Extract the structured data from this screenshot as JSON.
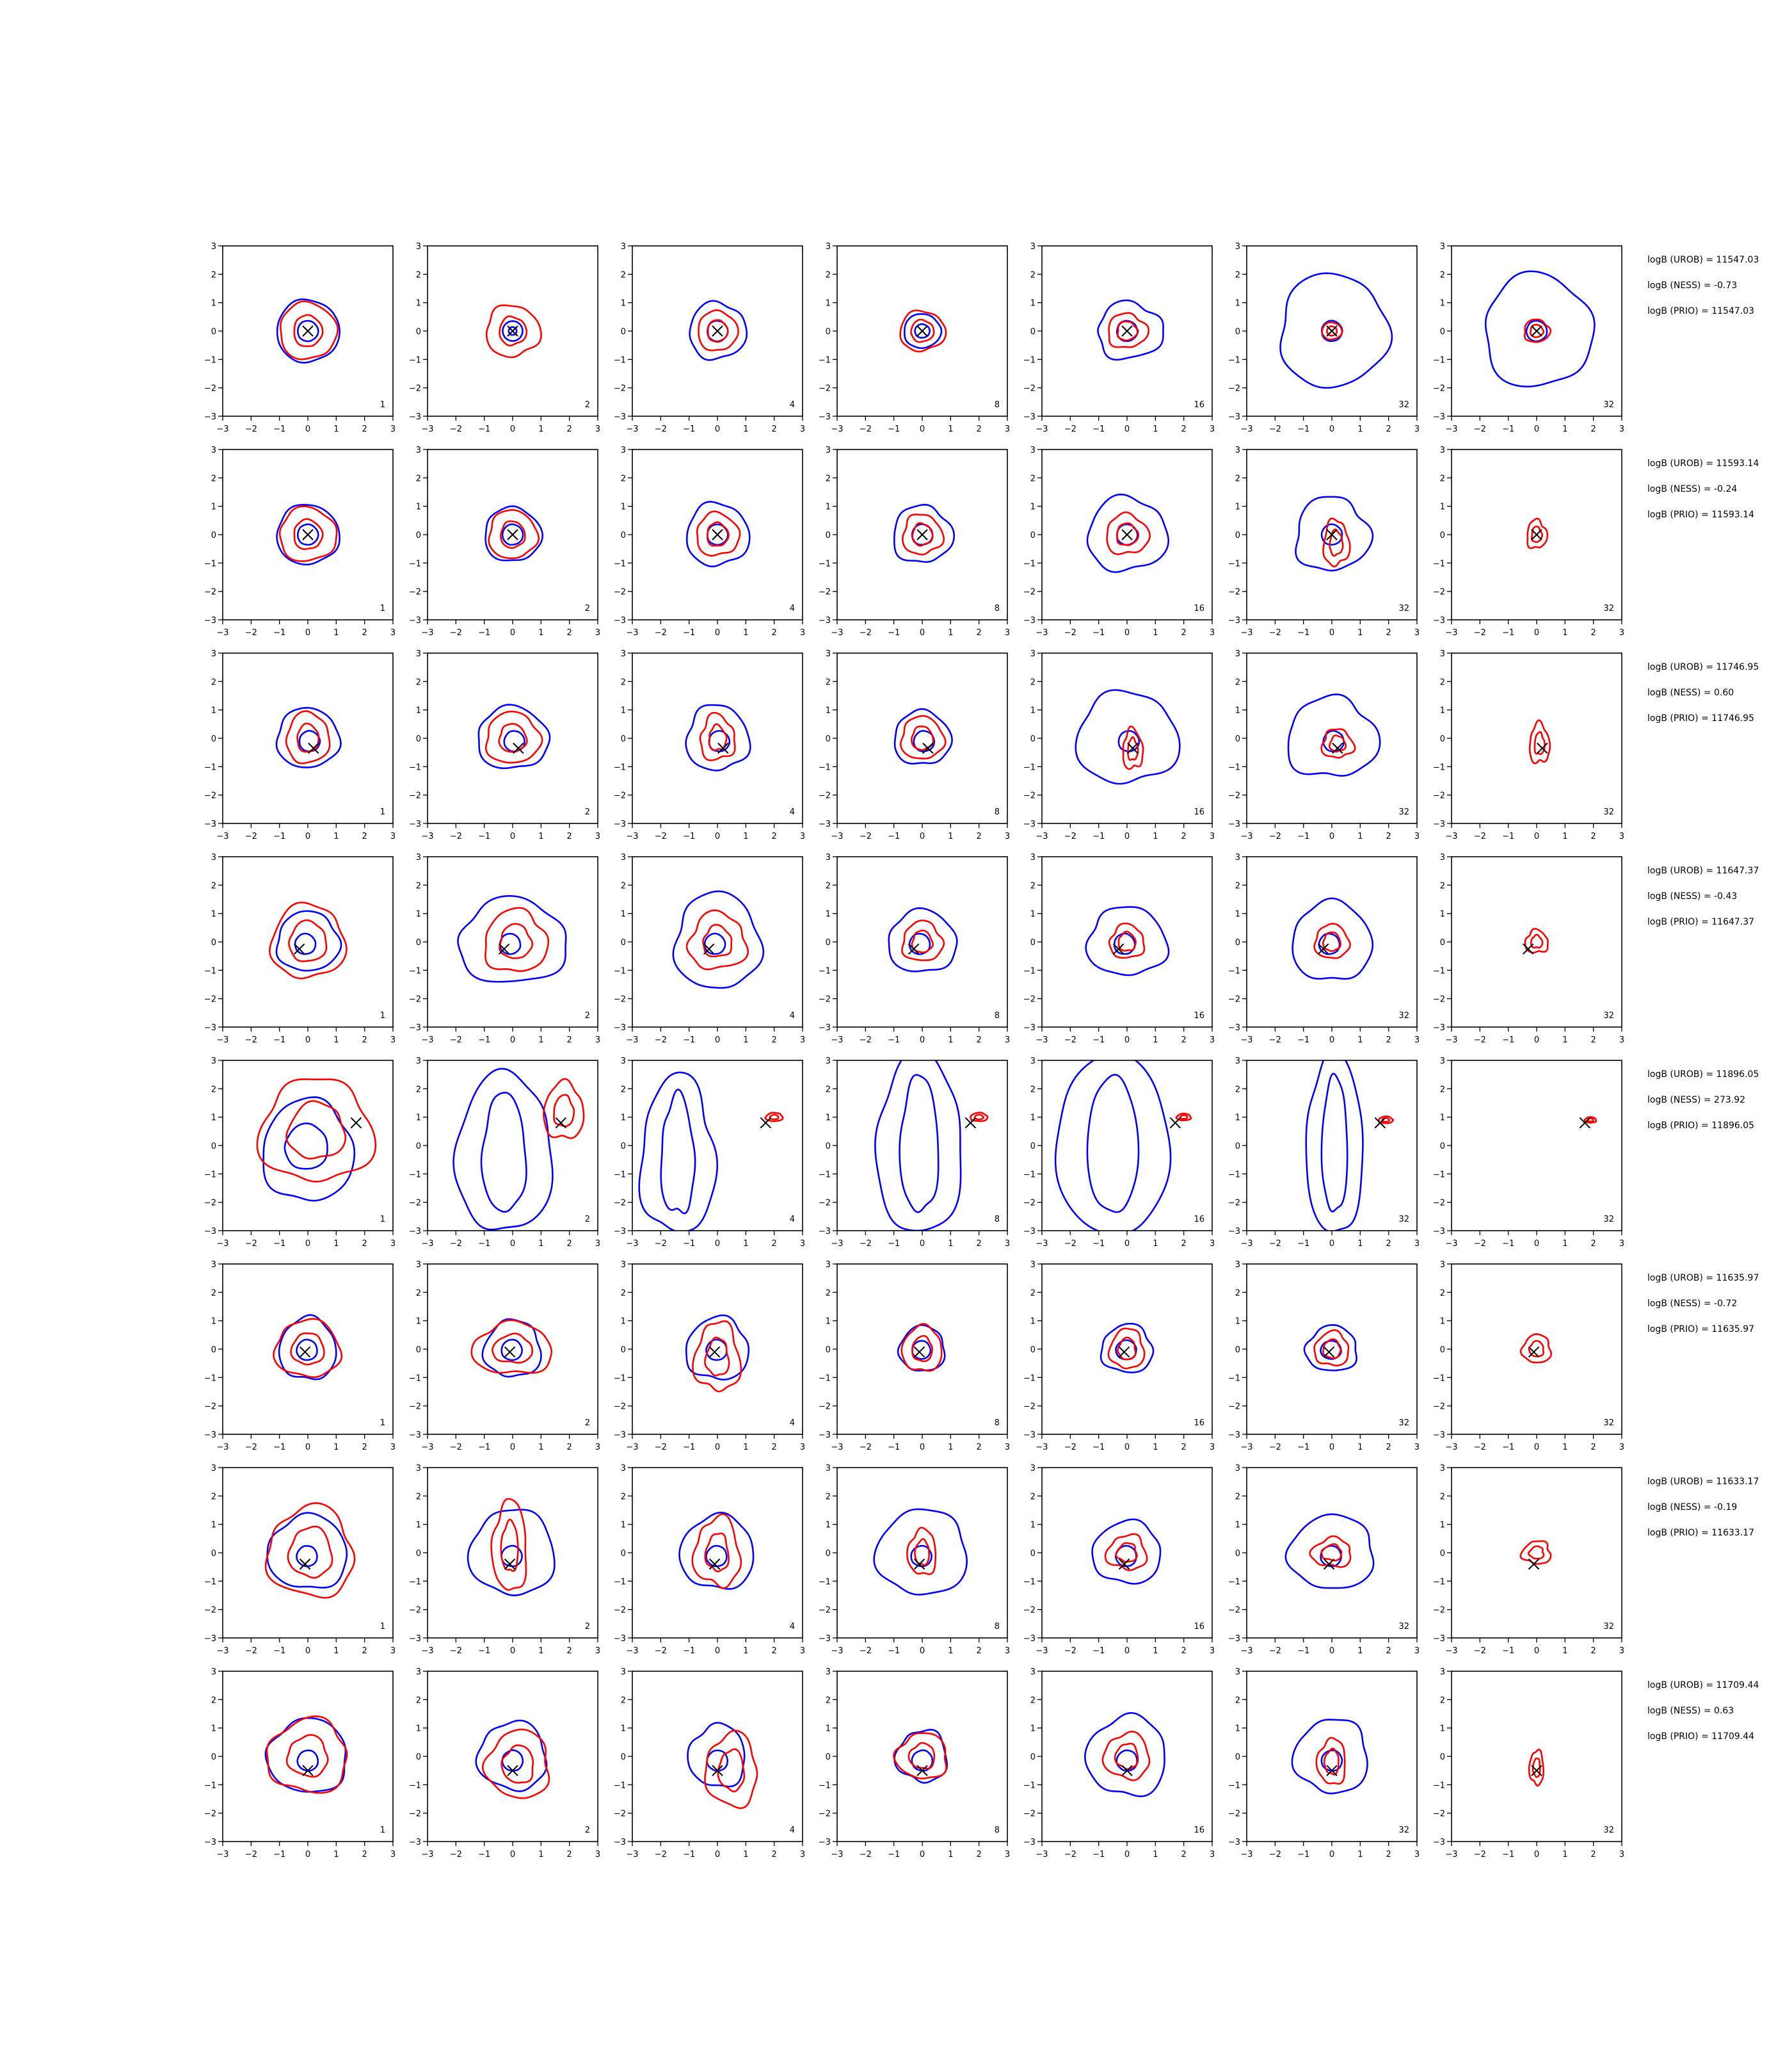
{
  "chart_data": {
    "type": "contour-grid",
    "xlim": [
      -3,
      3
    ],
    "ylim": [
      -3,
      3
    ],
    "xticks": [
      "−3",
      "−2",
      "−1",
      "0",
      "1",
      "2",
      "3"
    ],
    "yticks": [
      "3",
      "2",
      "1",
      "0",
      "−1",
      "−2",
      "−3"
    ],
    "colors": {
      "proposal": "#0000ff",
      "target": "#ff0000",
      "marker": "#000000"
    },
    "columns": [
      "1",
      "2",
      "4",
      "8",
      "16",
      "32",
      "32"
    ],
    "rows": [
      {
        "marker": [
          0.0,
          0.0
        ],
        "stats": [
          "logB (UROB) = 11547.03",
          "logB (NESS) = -0.73",
          "logB (PRIO) = 11547.03"
        ],
        "blue": [
          [
            1.1,
            1.1,
            0.05,
            0,
            0
          ],
          [
            0.35,
            0.35,
            0,
            0,
            0
          ],
          [
            1.0,
            1.0,
            0.1,
            0,
            0
          ],
          [
            0.65,
            0.6,
            0.05,
            0,
            0
          ],
          [
            1.15,
            1.0,
            0.15,
            0.1,
            0
          ],
          [
            1.9,
            2.0,
            0.1,
            0.05,
            0
          ],
          [
            1.9,
            2.0,
            0.1,
            0.05,
            0
          ]
        ],
        "red": [
          [
            1.0,
            1.0,
            0.08,
            0,
            0
          ],
          [
            0.95,
            0.9,
            0.12,
            0,
            0
          ],
          [
            0.7,
            0.7,
            0.08,
            0,
            0
          ],
          [
            0.8,
            0.7,
            0.1,
            0,
            0
          ],
          [
            0.7,
            0.6,
            0.15,
            0,
            0
          ],
          [
            0.35,
            0.3,
            0.05,
            0,
            0
          ],
          [
            0.45,
            0.4,
            0.12,
            0,
            0
          ]
        ]
      },
      {
        "marker": [
          0.0,
          0.0
        ],
        "stats": [
          "logB (UROB) = 11593.14",
          "logB (NESS) = -0.24",
          "logB (PRIO) = 11593.14"
        ],
        "blue": [
          [
            1.1,
            1.05,
            0.06,
            0,
            0
          ],
          [
            1.0,
            0.95,
            0.08,
            0,
            0
          ],
          [
            1.1,
            1.1,
            0.1,
            0,
            0
          ],
          [
            1.05,
            1.0,
            0.12,
            0,
            0
          ],
          [
            1.4,
            1.3,
            0.12,
            0,
            0
          ],
          [
            1.3,
            1.3,
            0.15,
            0,
            0
          ],
          [
            0,
            0,
            0,
            0,
            0
          ]
        ],
        "red": [
          [
            1.0,
            0.95,
            0.1,
            0,
            0
          ],
          [
            0.85,
            0.85,
            0.1,
            0,
            0
          ],
          [
            0.75,
            0.75,
            0.12,
            0,
            0
          ],
          [
            0.7,
            0.7,
            0.15,
            0,
            0
          ],
          [
            0.75,
            0.7,
            0.15,
            0,
            0
          ],
          [
            0.45,
            0.8,
            0.18,
            0.15,
            -0.3
          ],
          [
            0.35,
            0.5,
            0.2,
            0,
            0
          ]
        ]
      },
      {
        "marker": [
          0.2,
          -0.35
        ],
        "stats": [
          "logB (UROB) = 11746.95",
          "logB (NESS) = 0.60",
          "logB (PRIO) = 11746.95"
        ],
        "blue": [
          [
            1.1,
            1.05,
            0.08,
            0,
            0
          ],
          [
            1.25,
            1.1,
            0.1,
            0,
            0
          ],
          [
            1.1,
            1.15,
            0.12,
            0,
            0
          ],
          [
            1.0,
            0.95,
            0.1,
            0,
            0
          ],
          [
            1.8,
            1.6,
            0.12,
            0,
            0
          ],
          [
            1.6,
            1.4,
            0.15,
            0,
            0
          ],
          [
            0,
            0,
            0,
            0,
            0
          ]
        ],
        "red": [
          [
            0.75,
            0.9,
            0.1,
            0,
            0
          ],
          [
            0.95,
            0.9,
            0.12,
            0,
            0
          ],
          [
            0.6,
            0.8,
            0.2,
            0,
            0
          ],
          [
            0.75,
            0.75,
            0.12,
            0,
            0
          ],
          [
            0.35,
            0.7,
            0.2,
            0.2,
            -0.4
          ],
          [
            0.55,
            0.5,
            0.2,
            0.2,
            -0.2
          ],
          [
            0.35,
            0.7,
            0.2,
            0.1,
            -0.2
          ]
        ]
      },
      {
        "marker": [
          -0.3,
          -0.25
        ],
        "stats": [
          "logB (UROB) = 11647.37",
          "logB (NESS) = -0.43",
          "logB (PRIO) = 11647.37"
        ],
        "blue": [
          [
            1.1,
            1.05,
            0.1,
            0,
            0
          ],
          [
            1.9,
            1.5,
            0.12,
            0,
            0
          ],
          [
            1.5,
            1.7,
            0.12,
            0,
            0
          ],
          [
            1.2,
            1.1,
            0.1,
            0,
            0
          ],
          [
            1.4,
            1.2,
            0.12,
            0,
            0
          ],
          [
            1.4,
            1.4,
            0.1,
            0,
            0
          ],
          [
            0,
            0,
            0,
            0,
            0
          ]
        ],
        "red": [
          [
            1.3,
            1.3,
            0.12,
            0,
            0
          ],
          [
            1.1,
            1.1,
            0.15,
            0.1,
            0
          ],
          [
            1.0,
            1.0,
            0.18,
            0,
            0
          ],
          [
            0.7,
            0.7,
            0.15,
            0,
            0
          ],
          [
            0.6,
            0.6,
            0.15,
            0,
            0
          ],
          [
            0.6,
            0.6,
            0.12,
            0,
            0
          ],
          [
            0.4,
            0.4,
            0.2,
            0,
            0
          ]
        ]
      },
      {
        "marker": [
          1.7,
          0.8
        ],
        "stats": [
          "logB (UROB) = 11896.05",
          "logB (NESS) = 273.92",
          "logB (PRIO) = 11896.05"
        ],
        "blue": [
          [
            1.6,
            1.8,
            0.1,
            0,
            -0.2
          ],
          [
            1.7,
            2.8,
            0.1,
            -0.3,
            -0.3
          ],
          [
            1.3,
            2.8,
            0.15,
            -1.4,
            -0.4
          ],
          [
            1.5,
            3.2,
            0.1,
            -0.1,
            0
          ],
          [
            2.0,
            3.2,
            0.05,
            -0.5,
            0
          ],
          [
            1.0,
            3.2,
            0.08,
            0.1,
            0
          ],
          [
            0,
            0,
            0,
            0,
            0
          ]
        ],
        "red": [
          [
            2.0,
            1.8,
            0.15,
            0.3,
            0.5
          ],
          [
            0.7,
            1.0,
            0.15,
            1.8,
            1.2
          ],
          [
            0.3,
            0.15,
            0.1,
            2.0,
            1.0
          ],
          [
            0.3,
            0.15,
            0.1,
            2.0,
            1.0
          ],
          [
            0.25,
            0.12,
            0.1,
            2.0,
            1.0
          ],
          [
            0.25,
            0.12,
            0.1,
            1.9,
            0.9
          ],
          [
            0.2,
            0.1,
            0.1,
            1.9,
            0.9
          ]
        ]
      },
      {
        "marker": [
          -0.1,
          -0.1
        ],
        "stats": [
          "logB (UROB) = 11635.97",
          "logB (NESS) = -0.72",
          "logB (PRIO) = 11635.97"
        ],
        "blue": [
          [
            1.0,
            1.1,
            0.1,
            0,
            0
          ],
          [
            1.0,
            1.0,
            0.12,
            0,
            0
          ],
          [
            1.1,
            1.1,
            0.12,
            0,
            0
          ],
          [
            0.8,
            0.8,
            0.1,
            0,
            0
          ],
          [
            0.9,
            0.85,
            0.12,
            0,
            0
          ],
          [
            0.9,
            0.8,
            0.12,
            0,
            0
          ],
          [
            0,
            0,
            0,
            0,
            0
          ]
        ],
        "red": [
          [
            1.15,
            1.0,
            0.12,
            0,
            0
          ],
          [
            1.4,
            0.9,
            0.15,
            0,
            0
          ],
          [
            0.8,
            1.2,
            0.2,
            0,
            -0.3
          ],
          [
            0.7,
            0.8,
            0.12,
            0,
            0
          ],
          [
            0.6,
            0.7,
            0.15,
            0,
            0
          ],
          [
            0.6,
            0.6,
            0.15,
            0,
            0
          ],
          [
            0.5,
            0.5,
            0.15,
            0,
            0
          ]
        ]
      },
      {
        "marker": [
          -0.1,
          -0.4
        ],
        "stats": [
          "logB (UROB) = 11633.17",
          "logB (NESS) = -0.19",
          "logB (PRIO) = 11633.17"
        ],
        "blue": [
          [
            1.4,
            1.3,
            0.1,
            0,
            0
          ],
          [
            1.5,
            1.5,
            0.1,
            0,
            0
          ],
          [
            1.3,
            1.3,
            0.1,
            0,
            0
          ],
          [
            1.6,
            1.5,
            0.1,
            0,
            0
          ],
          [
            1.2,
            1.1,
            0.1,
            0,
            0
          ],
          [
            1.5,
            1.3,
            0.1,
            0,
            0
          ],
          [
            0,
            0,
            0,
            0,
            0
          ]
        ],
        "red": [
          [
            1.5,
            1.6,
            0.15,
            0.1,
            0
          ],
          [
            0.6,
            1.6,
            0.15,
            -0.1,
            0.2
          ],
          [
            0.8,
            1.2,
            0.2,
            0,
            0
          ],
          [
            0.5,
            0.8,
            0.15,
            0,
            0
          ],
          [
            0.7,
            0.6,
            0.2,
            0,
            0
          ],
          [
            0.7,
            0.5,
            0.2,
            0,
            0
          ],
          [
            0.5,
            0.4,
            0.2,
            0,
            0
          ]
        ]
      },
      {
        "marker": [
          0.0,
          -0.5
        ],
        "stats": [
          "logB (UROB) = 11709.44",
          "logB (NESS) = 0.63",
          "logB (PRIO) = 11709.44"
        ],
        "blue": [
          [
            1.4,
            1.3,
            0.1,
            0,
            0
          ],
          [
            1.2,
            1.2,
            0.12,
            0,
            0
          ],
          [
            1.0,
            1.1,
            0.12,
            0,
            0
          ],
          [
            0.9,
            0.9,
            0.15,
            0,
            0
          ],
          [
            1.4,
            1.4,
            0.12,
            0,
            0
          ],
          [
            1.3,
            1.3,
            0.12,
            0,
            0
          ],
          [
            0,
            0,
            0,
            0,
            0
          ]
        ],
        "red": [
          [
            1.4,
            1.3,
            0.15,
            0,
            0
          ],
          [
            1.1,
            1.2,
            0.15,
            0.2,
            -0.3
          ],
          [
            0.9,
            1.3,
            0.15,
            0.5,
            -0.5
          ],
          [
            0.9,
            0.8,
            0.15,
            0,
            0
          ],
          [
            0.8,
            0.8,
            0.15,
            0,
            0
          ],
          [
            0.5,
            0.8,
            0.15,
            0,
            -0.2
          ],
          [
            0.25,
            0.6,
            0.15,
            0,
            -0.4
          ]
        ]
      }
    ]
  }
}
